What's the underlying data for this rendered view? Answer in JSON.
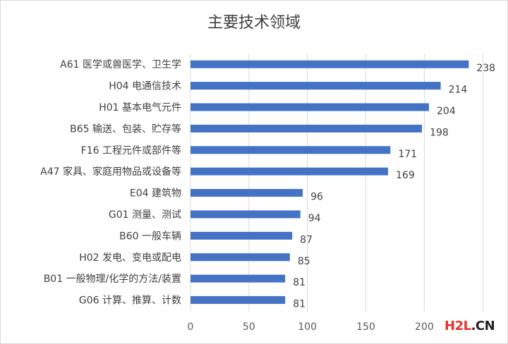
{
  "chart_data": {
    "type": "bar",
    "orientation": "horizontal",
    "title": "主要技术领域",
    "categories": [
      "A61 医学或兽医学、卫生学",
      "H04 电通信技术",
      "H01 基本电气元件",
      "B65 输送、包装、贮存等",
      "F16 工程元件或部件等",
      "A47 家具、家庭用物品或设备等",
      "E04 建筑物",
      "G01 测量、测试",
      "B60 一般车辆",
      "H02 发电、变电或配电",
      "B01 一般物理/化学的方法/装置",
      "G06 计算、推算、计数"
    ],
    "values": [
      238,
      214,
      204,
      198,
      171,
      169,
      96,
      94,
      87,
      85,
      81,
      81
    ],
    "x_ticks": [
      "0",
      "50",
      "100",
      "150",
      "200"
    ],
    "xlim": [
      0,
      250
    ],
    "grid": "vertical",
    "legend": "none",
    "bar_color": "#4472c4"
  },
  "watermark": {
    "part1": "H2L",
    "part2": ".CN"
  }
}
